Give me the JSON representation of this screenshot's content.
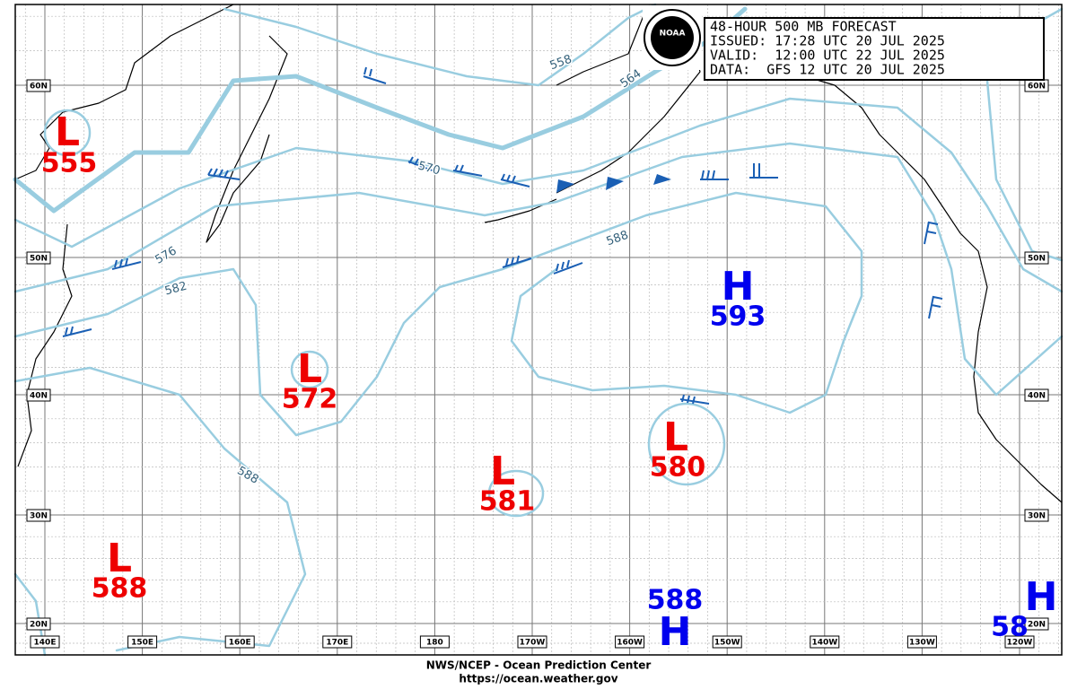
{
  "header": {
    "lines": [
      "48-HOUR 500 MB FORECAST",
      "ISSUED: 17:28 UTC 20 JUL 2025",
      "VALID:  12:00 UTC 22 JUL 2025",
      "DATA:  GFS 12 UTC 20 JUL 2025"
    ],
    "logo": "NOAA"
  },
  "footer": {
    "agency": "NWS/NCEP - Ocean Prediction Center",
    "url": "https://ocean.weather.gov"
  },
  "longitude_labels": [
    "140E",
    "150E",
    "160E",
    "170E",
    "180",
    "170W",
    "160W",
    "150W",
    "140W",
    "130W",
    "120W"
  ],
  "latitude_labels": [
    "60N",
    "50N",
    "40N",
    "30N",
    "20N"
  ],
  "centers": [
    {
      "type": "L",
      "value": "555"
    },
    {
      "type": "H",
      "value": "593"
    },
    {
      "type": "L",
      "value": "572"
    },
    {
      "type": "L",
      "value": "581"
    },
    {
      "type": "L",
      "value": "580"
    },
    {
      "type": "L",
      "value": "588"
    },
    {
      "type": "H",
      "value": "588"
    },
    {
      "type": "H",
      "value": "58"
    }
  ],
  "contour_labels": [
    "558",
    "564",
    "570",
    "576",
    "582",
    "588",
    "588"
  ]
}
